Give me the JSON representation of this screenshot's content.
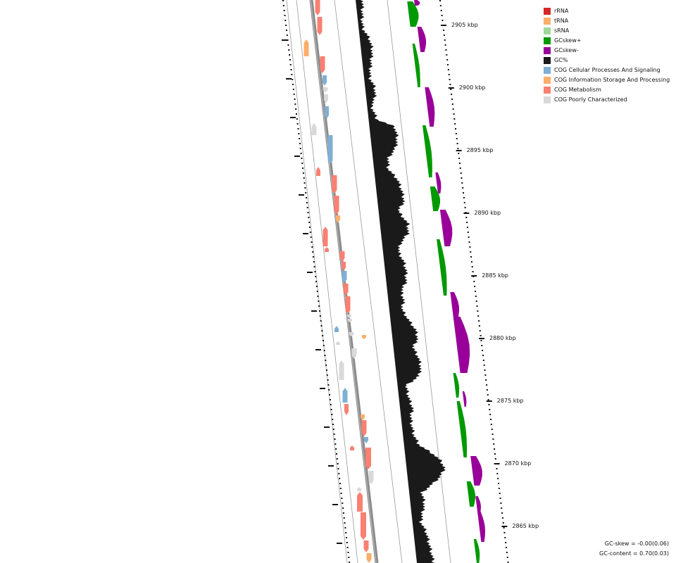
{
  "map": {
    "ticks": [
      "2905 kbp",
      "2900 kbp",
      "2895 kbp",
      "2890 kbp",
      "2885 kbp",
      "2880 kbp",
      "2875 kbp",
      "2870 kbp",
      "2865 kbp"
    ]
  },
  "legend": [
    {
      "label": "rRNA",
      "color": "#d62728"
    },
    {
      "label": "tRNA",
      "color": "#fdae6b"
    },
    {
      "label": "sRNA",
      "color": "#a1d99b"
    },
    {
      "label": "GCskew+",
      "color": "#009900"
    },
    {
      "label": "GCskew-",
      "color": "#990099"
    },
    {
      "label": "GC%",
      "color": "#1a1a1a"
    },
    {
      "label": "COG Cellular Processes And Signaling",
      "color": "#7fafd4"
    },
    {
      "label": "COG Information Storage And Processing",
      "color": "#fdae6b"
    },
    {
      "label": "COG Metabolism",
      "color": "#fa8072"
    },
    {
      "label": "COG Poorly Characterized",
      "color": "#d9d9d9"
    }
  ],
  "stats": {
    "gc_skew": "GC-skew = -0.00(0.06)",
    "gc_content": "GC-content = 0.70(0.03)"
  }
}
